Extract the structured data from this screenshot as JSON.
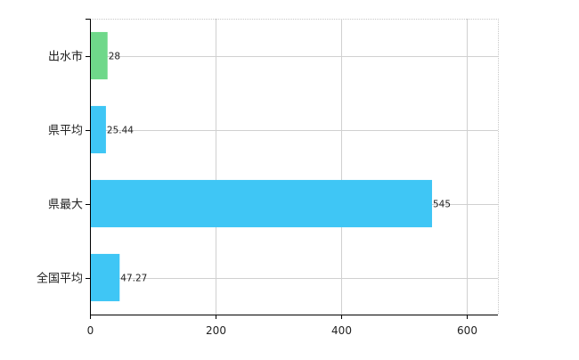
{
  "chart_data": {
    "type": "bar",
    "orientation": "horizontal",
    "categories": [
      "出水市",
      "県平均",
      "県最大",
      "全国平均"
    ],
    "values": [
      28,
      25.44,
      545,
      47.27
    ],
    "value_labels": [
      "28",
      "25.44",
      "545",
      "47.27"
    ],
    "bar_colors": [
      "#6fd88a",
      "#3fc6f5",
      "#3fc6f5",
      "#3fc6f5"
    ],
    "xlim": [
      0,
      650
    ],
    "xticks": [
      0,
      200,
      400,
      600
    ],
    "xtick_labels": [
      "0",
      "200",
      "400",
      "600"
    ],
    "grid": true,
    "grid_style": "dotted",
    "legend": "none"
  }
}
